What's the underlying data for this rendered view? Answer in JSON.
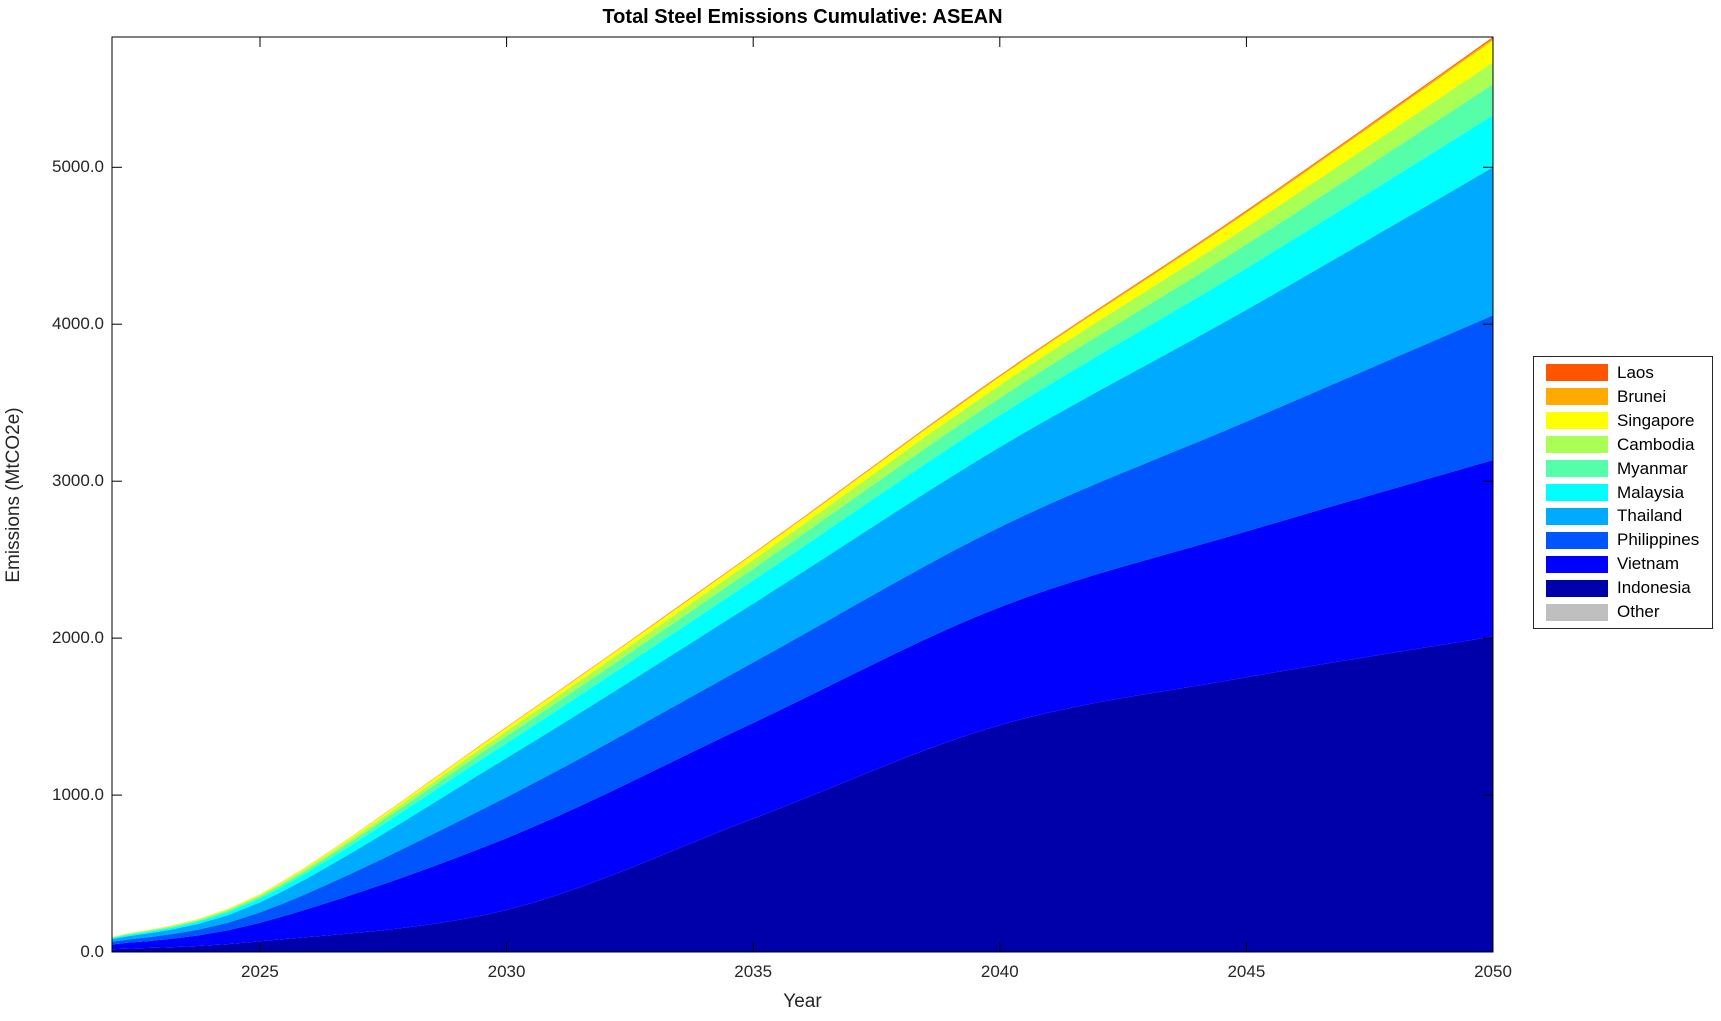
{
  "title": "Total Steel Emissions Cumulative: ASEAN",
  "axes": {
    "xlabel": "Year",
    "ylabel": "Emissions (MtCO2e)",
    "xtick_labels": [
      "2025",
      "2030",
      "2035",
      "2040",
      "2045",
      "2050"
    ],
    "ytick_labels": [
      "0.0",
      "1000.0",
      "2000.0",
      "3000.0",
      "4000.0",
      "5000.0"
    ]
  },
  "legend": {
    "items": [
      {
        "label": "Laos",
        "color": "#ff5500"
      },
      {
        "label": "Brunei",
        "color": "#ffaa00"
      },
      {
        "label": "Singapore",
        "color": "#ffff00"
      },
      {
        "label": "Cambodia",
        "color": "#aaff55"
      },
      {
        "label": "Myanmar",
        "color": "#55ffaa"
      },
      {
        "label": "Malaysia",
        "color": "#00ffff"
      },
      {
        "label": "Thailand",
        "color": "#00aaff"
      },
      {
        "label": "Philippines",
        "color": "#0055ff"
      },
      {
        "label": "Vietnam",
        "color": "#0000ff"
      },
      {
        "label": "Indonesia",
        "color": "#0000aa"
      },
      {
        "label": "Other",
        "color": "#bfbfbf"
      }
    ]
  },
  "chart_data": {
    "type": "area",
    "stacked": true,
    "title": "Total Steel Emissions Cumulative: ASEAN",
    "xlabel": "Year",
    "ylabel": "Emissions (MtCO2e)",
    "xlim": [
      2022,
      2050
    ],
    "ylim": [
      0,
      5830
    ],
    "xticks": [
      2025,
      2030,
      2035,
      2040,
      2045,
      2050
    ],
    "yticks": [
      0,
      1000,
      2000,
      3000,
      4000,
      5000
    ],
    "grid": false,
    "legend_position": "right-outside",
    "x": [
      2022,
      2025,
      2030,
      2035,
      2040,
      2045,
      2050
    ],
    "series_note": "listed bottom-to-top in stacking order; values are cumulative MtCO2e estimated from plot",
    "series": [
      {
        "name": "Other",
        "color": "#bfbfbf",
        "values": [
          0,
          0,
          0,
          0,
          0,
          0,
          0
        ]
      },
      {
        "name": "Indonesia",
        "color": "#0000aa",
        "values": [
          18,
          68,
          268,
          850,
          1446,
          1750,
          2010
        ]
      },
      {
        "name": "Vietnam",
        "color": "#0000ff",
        "values": [
          30,
          118,
          458,
          610,
          751,
          930,
          1124
        ]
      },
      {
        "name": "Philippines",
        "color": "#0055ff",
        "values": [
          17,
          66,
          261,
          385,
          510,
          700,
          923
        ]
      },
      {
        "name": "Thailand",
        "color": "#00aaff",
        "values": [
          17,
          64,
          249,
          375,
          510,
          712,
          943
        ]
      },
      {
        "name": "Malaysia",
        "color": "#00ffff",
        "values": [
          7,
          25,
          95,
          148,
          203,
          265,
          331
        ]
      },
      {
        "name": "Myanmar",
        "color": "#55ffaa",
        "values": [
          3.5,
          12,
          45,
          75,
          110,
          152,
          198
        ]
      },
      {
        "name": "Cambodia",
        "color": "#aaff55",
        "values": [
          2.5,
          9,
          32,
          55,
          82,
          110,
          140
        ]
      },
      {
        "name": "Singapore",
        "color": "#ffff00",
        "values": [
          2,
          6,
          22,
          36,
          52,
          90,
          140
        ]
      },
      {
        "name": "Brunei",
        "color": "#ffaa00",
        "values": [
          0.3,
          0.8,
          3,
          4.5,
          7,
          10,
          13
        ]
      },
      {
        "name": "Laos",
        "color": "#ff5500",
        "values": [
          0.2,
          0.4,
          1.5,
          2.5,
          4,
          6,
          8
        ]
      }
    ]
  }
}
